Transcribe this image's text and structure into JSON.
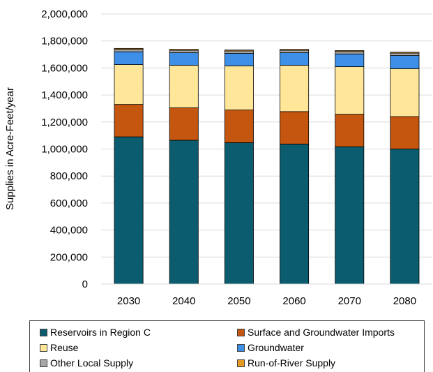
{
  "chart_data": {
    "type": "bar",
    "stacked": true,
    "categories": [
      "2030",
      "2040",
      "2050",
      "2060",
      "2070",
      "2080"
    ],
    "ylabel": "Supplies in Acre-Feet/year",
    "xlabel": "",
    "ylim": [
      0,
      2000000
    ],
    "yticks": [
      0,
      200000,
      400000,
      600000,
      800000,
      1000000,
      1200000,
      1400000,
      1600000,
      1800000,
      2000000
    ],
    "ytick_labels": [
      "0",
      "200,000",
      "400,000",
      "600,000",
      "800,000",
      "1,000,000",
      "1,200,000",
      "1,400,000",
      "1,600,000",
      "1,800,000",
      "2,000,000"
    ],
    "grid": "horizontal",
    "legend_position": "bottom",
    "series": [
      {
        "name": "Reservoirs in Region C",
        "color": "#0b5c6e",
        "values": [
          1090000,
          1065000,
          1047000,
          1037000,
          1017000,
          1000000
        ]
      },
      {
        "name": "Surface and Groundwater Imports",
        "color": "#c5560f",
        "values": [
          240000,
          240000,
          242000,
          240000,
          240000,
          240000
        ]
      },
      {
        "name": "Reuse",
        "color": "#ffe699",
        "values": [
          295000,
          315000,
          327000,
          343000,
          353000,
          355000
        ]
      },
      {
        "name": "Groundwater",
        "color": "#3d8fe8",
        "values": [
          95000,
          93000,
          92000,
          93000,
          94000,
          97000
        ]
      },
      {
        "name": "Other Local Supply",
        "color": "#a6a6a6",
        "values": [
          18000,
          18000,
          18000,
          18000,
          18000,
          18000
        ]
      },
      {
        "name": "Run-of-River Supply",
        "color": "#e39b24",
        "values": [
          7000,
          7000,
          7000,
          7000,
          7000,
          7000
        ]
      }
    ]
  }
}
